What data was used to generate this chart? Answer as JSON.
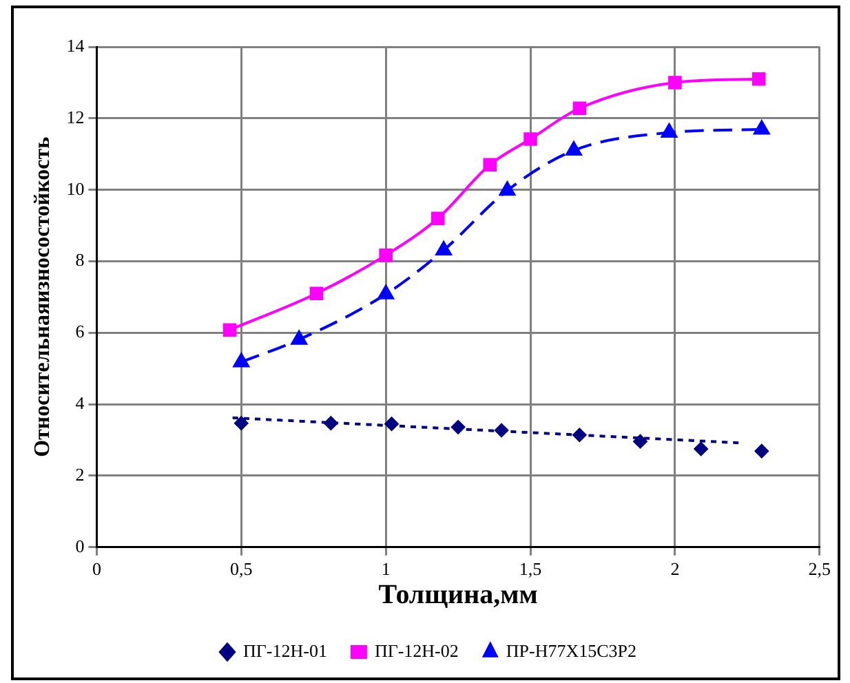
{
  "chart_data": {
    "type": "line",
    "xlabel": "Толщина,мм",
    "ylabel": "Относительнаяизносостойкость",
    "xlim": [
      0,
      2.5
    ],
    "xticks": [
      0,
      {
        "value": 0.5,
        "label": "0,5"
      },
      1,
      {
        "value": 1.5,
        "label": "1,5"
      },
      2,
      {
        "value": 2.5,
        "label": "2,5"
      }
    ],
    "ylim": [
      0,
      14
    ],
    "yticks": [
      0,
      2,
      4,
      6,
      8,
      10,
      12,
      14
    ],
    "grid": true,
    "legend": "bottom",
    "series": [
      {
        "name": "ПГ-12Н-01",
        "type": "scatter",
        "color": "#000080",
        "marker": "diamond",
        "x": [
          0.5,
          0.81,
          1.02,
          1.25,
          1.4,
          1.67,
          1.88,
          2.09,
          2.3
        ],
        "values": [
          3.47,
          3.47,
          3.45,
          3.36,
          3.27,
          3.14,
          2.96,
          2.75,
          2.69
        ]
      },
      {
        "name": "ПГ-12Н-02",
        "type": "line",
        "color": "#ff00ff",
        "marker": "square",
        "line_style": "solid",
        "x": [
          0.46,
          0.76,
          1.0,
          1.18,
          1.36,
          1.5,
          1.67,
          2.0,
          2.29
        ],
        "values": [
          6.08,
          7.1,
          8.17,
          9.2,
          10.7,
          11.42,
          12.28,
          13.0,
          13.1
        ]
      },
      {
        "name": "ПР-Н77Х15С3Р2",
        "type": "line",
        "color": "#0000ff",
        "marker": "triangle",
        "line_style": "dashed",
        "x": [
          0.5,
          0.7,
          1.0,
          1.2,
          1.42,
          1.65,
          1.98,
          2.3
        ],
        "values": [
          5.18,
          5.81,
          7.08,
          8.31,
          9.98,
          11.1,
          11.6,
          11.69
        ]
      },
      {
        "type": "line",
        "color": "#000080",
        "marker": "none",
        "line_style": "dotted",
        "x": [
          0.47,
          2.22
        ],
        "values": [
          3.62,
          2.92
        ]
      }
    ]
  }
}
